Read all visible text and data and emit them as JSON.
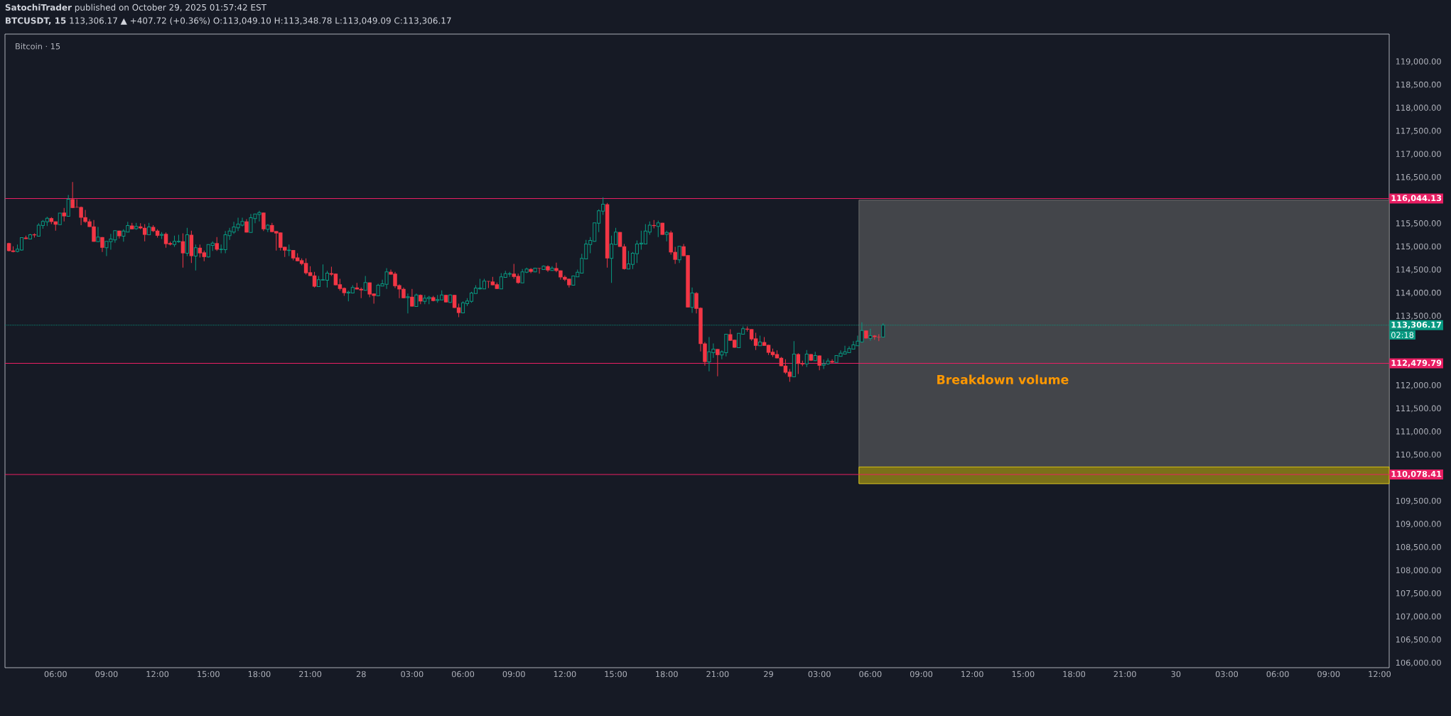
{
  "chart_data": {
    "type": "candlestick",
    "title": "**SatochiTrader** published on October 29, 2025 01:57:42 EST",
    "subtitle": "**BTCUSDT, 15** 113,306.17 ▲ +407.72 (+0.36%) O:113,049.10 H:113,348.78 L:113,049.09 C:113,306.17",
    "annotations": [
      "Bitcoin · 15",
      "02:18",
      "Breakdown volume"
    ],
    "x": [
      "2025-10-27T03:15",
      "2025-10-27T03:30",
      "2025-10-27T03:45",
      "2025-10-27T04:00",
      "2025-10-27T04:15",
      "2025-10-27T04:30",
      "2025-10-27T04:45",
      "2025-10-27T05:00",
      "2025-10-27T05:15",
      "2025-10-27T05:30",
      "2025-10-27T05:45",
      "2025-10-27T06:00",
      "2025-10-27T06:15",
      "2025-10-27T06:30",
      "2025-10-27T06:45",
      "2025-10-27T07:00",
      "2025-10-27T07:15",
      "2025-10-27T07:30",
      "2025-10-27T07:45",
      "2025-10-27T08:00",
      "2025-10-27T08:15",
      "2025-10-27T08:30",
      "2025-10-27T08:45",
      "2025-10-27T09:00",
      "2025-10-27T09:15",
      "2025-10-27T09:30",
      "2025-10-27T09:45",
      "2025-10-27T10:00",
      "2025-10-27T10:15",
      "2025-10-27T10:30",
      "2025-10-27T10:45",
      "2025-10-27T11:00",
      "2025-10-27T11:15",
      "2025-10-27T11:30",
      "2025-10-27T11:45",
      "2025-10-27T12:00",
      "2025-10-27T12:15",
      "2025-10-27T12:30",
      "2025-10-27T12:45",
      "2025-10-27T13:00",
      "2025-10-27T13:15",
      "2025-10-27T13:30",
      "2025-10-27T13:45",
      "2025-10-27T14:00",
      "2025-10-27T14:15",
      "2025-10-27T14:30",
      "2025-10-27T14:45",
      "2025-10-27T15:00",
      "2025-10-27T15:15",
      "2025-10-27T15:30",
      "2025-10-27T15:45",
      "2025-10-27T16:00",
      "2025-10-27T16:15",
      "2025-10-27T16:30",
      "2025-10-27T16:45",
      "2025-10-27T17:00",
      "2025-10-27T17:15",
      "2025-10-27T17:30",
      "2025-10-27T17:45",
      "2025-10-27T18:00",
      "2025-10-27T18:15",
      "2025-10-27T18:30",
      "2025-10-27T18:45",
      "2025-10-27T19:00",
      "2025-10-27T19:15",
      "2025-10-27T19:30",
      "2025-10-27T19:45",
      "2025-10-27T20:00",
      "2025-10-27T20:15",
      "2025-10-27T20:30",
      "2025-10-27T20:45",
      "2025-10-27T21:00",
      "2025-10-27T21:15",
      "2025-10-27T21:30",
      "2025-10-27T21:45",
      "2025-10-27T22:00",
      "2025-10-27T22:15",
      "2025-10-27T22:30",
      "2025-10-27T22:45",
      "2025-10-27T23:00",
      "2025-10-27T23:15",
      "2025-10-27T23:30",
      "2025-10-27T23:45",
      "2025-10-28T00:00",
      "2025-10-28T00:15",
      "2025-10-28T00:30",
      "2025-10-28T00:45",
      "2025-10-28T01:00",
      "2025-10-28T01:15",
      "2025-10-28T01:30",
      "2025-10-28T01:45",
      "2025-10-28T02:00",
      "2025-10-28T02:15",
      "2025-10-28T02:30",
      "2025-10-28T02:45",
      "2025-10-28T03:00",
      "2025-10-28T03:15",
      "2025-10-28T03:30",
      "2025-10-28T03:45",
      "2025-10-28T04:00",
      "2025-10-28T04:15",
      "2025-10-28T04:30",
      "2025-10-28T04:45",
      "2025-10-28T05:00",
      "2025-10-28T05:15",
      "2025-10-28T05:30",
      "2025-10-28T05:45",
      "2025-10-28T06:00",
      "2025-10-28T06:15",
      "2025-10-28T06:30",
      "2025-10-28T06:45",
      "2025-10-28T07:00",
      "2025-10-28T07:15",
      "2025-10-28T07:30",
      "2025-10-28T07:45",
      "2025-10-28T08:00",
      "2025-10-28T08:15",
      "2025-10-28T08:30",
      "2025-10-28T08:45",
      "2025-10-28T09:00",
      "2025-10-28T09:15",
      "2025-10-28T09:30",
      "2025-10-28T09:45",
      "2025-10-28T10:00",
      "2025-10-28T10:15",
      "2025-10-28T10:30",
      "2025-10-28T10:45",
      "2025-10-28T11:00",
      "2025-10-28T11:15",
      "2025-10-28T11:30",
      "2025-10-28T11:45",
      "2025-10-28T12:00",
      "2025-10-28T12:15",
      "2025-10-28T12:30",
      "2025-10-28T12:45",
      "2025-10-28T13:00",
      "2025-10-28T13:15",
      "2025-10-28T13:30",
      "2025-10-28T13:45",
      "2025-10-28T14:00",
      "2025-10-28T14:15",
      "2025-10-28T14:30",
      "2025-10-28T14:45",
      "2025-10-28T15:00",
      "2025-10-28T15:15",
      "2025-10-28T15:30",
      "2025-10-28T15:45",
      "2025-10-28T16:00",
      "2025-10-28T16:15",
      "2025-10-28T16:30",
      "2025-10-28T16:45",
      "2025-10-28T17:00",
      "2025-10-28T17:15",
      "2025-10-28T17:30",
      "2025-10-28T17:45",
      "2025-10-28T18:00",
      "2025-10-28T18:15",
      "2025-10-28T18:30",
      "2025-10-28T18:45",
      "2025-10-28T19:00",
      "2025-10-28T19:15",
      "2025-10-28T19:30",
      "2025-10-28T19:45",
      "2025-10-28T20:00",
      "2025-10-28T20:15",
      "2025-10-28T20:30",
      "2025-10-28T20:45",
      "2025-10-28T21:00",
      "2025-10-28T21:15",
      "2025-10-28T21:30",
      "2025-10-28T21:45",
      "2025-10-28T22:00",
      "2025-10-28T22:15",
      "2025-10-28T22:30",
      "2025-10-28T22:45",
      "2025-10-28T23:00",
      "2025-10-28T23:15",
      "2025-10-28T23:30",
      "2025-10-28T23:45",
      "2025-10-29T00:00",
      "2025-10-29T00:15",
      "2025-10-29T00:30",
      "2025-10-29T00:45",
      "2025-10-29T01:00",
      "2025-10-29T01:15",
      "2025-10-29T01:30",
      "2025-10-29T01:45",
      "2025-10-29T02:00",
      "2025-10-29T02:15",
      "2025-10-29T02:30",
      "2025-10-29T02:45",
      "2025-10-29T03:00",
      "2025-10-29T03:15",
      "2025-10-29T03:30",
      "2025-10-29T03:45",
      "2025-10-29T04:00",
      "2025-10-29T04:15",
      "2025-10-29T04:30",
      "2025-10-29T04:45",
      "2025-10-29T05:00",
      "2025-10-29T05:15",
      "2025-10-29T05:30",
      "2025-10-29T05:45",
      "2025-10-29T06:00",
      "2025-10-29T06:15",
      "2025-10-29T06:30",
      "2025-10-29T06:45"
    ],
    "ohlc": [
      [
        115080,
        115090,
        114900,
        114910
      ],
      [
        114920,
        115010,
        114880,
        114890
      ],
      [
        114900,
        115050,
        114880,
        114950
      ],
      [
        114930,
        115200,
        114920,
        115200
      ],
      [
        115200,
        115240,
        115170,
        115170
      ],
      [
        115170,
        115280,
        115170,
        115260
      ],
      [
        115270,
        115290,
        115200,
        115250
      ],
      [
        115230,
        115510,
        115230,
        115470
      ],
      [
        115460,
        115580,
        115390,
        115550
      ],
      [
        115540,
        115650,
        115450,
        115620
      ],
      [
        115620,
        115640,
        115490,
        115540
      ],
      [
        115550,
        115550,
        115350,
        115480
      ],
      [
        115480,
        115730,
        115480,
        115730
      ],
      [
        115740,
        115840,
        115550,
        115660
      ],
      [
        115660,
        116120,
        115660,
        116030
      ],
      [
        116030,
        116400,
        115840,
        115840
      ],
      [
        115860,
        116030,
        115850,
        115850
      ],
      [
        115860,
        115870,
        115470,
        115630
      ],
      [
        115640,
        115800,
        115520,
        115540
      ],
      [
        115550,
        115600,
        115430,
        115430
      ],
      [
        115440,
        115580,
        115110,
        115110
      ],
      [
        115110,
        115430,
        115110,
        115210
      ],
      [
        115210,
        115210,
        114890,
        114980
      ],
      [
        114980,
        115120,
        114800,
        115120
      ],
      [
        115110,
        115280,
        114940,
        115170
      ],
      [
        115150,
        115350,
        115090,
        115350
      ],
      [
        115350,
        115350,
        115180,
        115230
      ],
      [
        115230,
        115380,
        115110,
        115340
      ],
      [
        115320,
        115540,
        115320,
        115460
      ],
      [
        115460,
        115520,
        115380,
        115380
      ],
      [
        115390,
        115520,
        115370,
        115440
      ],
      [
        115440,
        115510,
        115380,
        115400
      ],
      [
        115410,
        115490,
        115120,
        115260
      ],
      [
        115260,
        115520,
        115260,
        115430
      ],
      [
        115430,
        115470,
        115320,
        115340
      ],
      [
        115350,
        115380,
        115200,
        115240
      ],
      [
        115250,
        115320,
        115170,
        115270
      ],
      [
        115280,
        115310,
        114980,
        115060
      ],
      [
        115080,
        115110,
        115030,
        115050
      ],
      [
        115050,
        115240,
        115000,
        115120
      ],
      [
        115110,
        115260,
        115090,
        115120
      ],
      [
        115120,
        115290,
        114550,
        114860
      ],
      [
        114860,
        115410,
        114800,
        115260
      ],
      [
        115260,
        115350,
        114650,
        114800
      ],
      [
        114800,
        115050,
        114490,
        114980
      ],
      [
        114980,
        115050,
        114770,
        114860
      ],
      [
        114880,
        114920,
        114690,
        114780
      ],
      [
        114780,
        115050,
        114770,
        115050
      ],
      [
        115030,
        115120,
        114910,
        115080
      ],
      [
        115080,
        115210,
        114910,
        114940
      ],
      [
        114940,
        115050,
        114860,
        114950
      ],
      [
        114940,
        115340,
        114860,
        115260
      ],
      [
        115240,
        115410,
        115150,
        115340
      ],
      [
        115320,
        115540,
        115280,
        115430
      ],
      [
        115410,
        115630,
        115340,
        115490
      ],
      [
        115470,
        115630,
        115440,
        115550
      ],
      [
        115550,
        115600,
        115310,
        115310
      ],
      [
        115310,
        115710,
        115310,
        115630
      ],
      [
        115610,
        115710,
        115510,
        115710
      ],
      [
        115700,
        115780,
        115550,
        115740
      ],
      [
        115740,
        115740,
        115340,
        115380
      ],
      [
        115380,
        115490,
        115320,
        115470
      ],
      [
        115470,
        115520,
        115320,
        115320
      ],
      [
        115340,
        115340,
        114920,
        115290
      ],
      [
        115310,
        115310,
        114920,
        114980
      ],
      [
        115000,
        115000,
        114780,
        114920
      ],
      [
        114920,
        115050,
        114800,
        114930
      ],
      [
        114930,
        114930,
        114710,
        114750
      ],
      [
        114770,
        114860,
        114690,
        114690
      ],
      [
        114710,
        114750,
        114600,
        114630
      ],
      [
        114650,
        114750,
        114400,
        114430
      ],
      [
        114450,
        114580,
        114370,
        114370
      ],
      [
        114380,
        114460,
        114120,
        114140
      ],
      [
        114140,
        114370,
        114140,
        114290
      ],
      [
        114280,
        114620,
        114280,
        114290
      ],
      [
        114280,
        114480,
        114120,
        114430
      ],
      [
        114430,
        114570,
        114370,
        114400
      ],
      [
        114420,
        114420,
        114170,
        114170
      ],
      [
        114190,
        114310,
        114050,
        114090
      ],
      [
        114110,
        114120,
        113940,
        114000
      ],
      [
        114000,
        114050,
        113820,
        114020
      ],
      [
        114000,
        114170,
        114000,
        114120
      ],
      [
        114120,
        114220,
        114080,
        114080
      ],
      [
        114090,
        114120,
        113890,
        114060
      ],
      [
        114060,
        114370,
        114060,
        114230
      ],
      [
        114230,
        114230,
        113910,
        113970
      ],
      [
        113990,
        113990,
        113770,
        113940
      ],
      [
        113940,
        114200,
        113940,
        114170
      ],
      [
        114150,
        114290,
        114150,
        114200
      ],
      [
        114190,
        114540,
        114090,
        114460
      ],
      [
        114460,
        114510,
        114400,
        114400
      ],
      [
        114420,
        114460,
        114110,
        114150
      ],
      [
        114170,
        114190,
        113890,
        114080
      ],
      [
        114090,
        114120,
        113890,
        113890
      ],
      [
        113900,
        113990,
        113560,
        113920
      ],
      [
        113920,
        114090,
        113710,
        113710
      ],
      [
        113710,
        113990,
        113710,
        113960
      ],
      [
        113960,
        113970,
        113760,
        113820
      ],
      [
        113820,
        113960,
        113760,
        113890
      ],
      [
        113880,
        113940,
        113760,
        113910
      ],
      [
        113910,
        113940,
        113820,
        113830
      ],
      [
        113840,
        113960,
        113790,
        113860
      ],
      [
        113850,
        114060,
        113850,
        113960
      ],
      [
        113960,
        113960,
        113800,
        113800
      ],
      [
        113800,
        113970,
        113790,
        113960
      ],
      [
        113960,
        113960,
        113680,
        113680
      ],
      [
        113690,
        113770,
        113480,
        113570
      ],
      [
        113570,
        113820,
        113570,
        113790
      ],
      [
        113770,
        113890,
        113720,
        113830
      ],
      [
        113820,
        114030,
        113790,
        114000
      ],
      [
        113990,
        114170,
        113990,
        114110
      ],
      [
        114090,
        114310,
        114080,
        114110
      ],
      [
        114090,
        114310,
        114090,
        114260
      ],
      [
        114260,
        114260,
        114110,
        114250
      ],
      [
        114250,
        114350,
        114170,
        114170
      ],
      [
        114190,
        114230,
        114090,
        114090
      ],
      [
        114090,
        114430,
        114090,
        114350
      ],
      [
        114340,
        114480,
        114340,
        114420
      ],
      [
        114410,
        114460,
        114350,
        114420
      ],
      [
        114420,
        114630,
        114310,
        114350
      ],
      [
        114370,
        114420,
        114200,
        114220
      ],
      [
        114220,
        114520,
        114220,
        114460
      ],
      [
        114450,
        114550,
        114430,
        114520
      ],
      [
        114520,
        114540,
        114430,
        114460
      ],
      [
        114460,
        114540,
        114450,
        114540
      ],
      [
        114540,
        114540,
        114420,
        114530
      ],
      [
        114510,
        114600,
        114510,
        114580
      ],
      [
        114580,
        114600,
        114460,
        114490
      ],
      [
        114490,
        114580,
        114480,
        114540
      ],
      [
        114540,
        114660,
        114450,
        114480
      ],
      [
        114490,
        114490,
        114290,
        114340
      ],
      [
        114350,
        114380,
        114260,
        114290
      ],
      [
        114310,
        114310,
        114120,
        114170
      ],
      [
        114170,
        114370,
        114170,
        114370
      ],
      [
        114350,
        114510,
        114350,
        114450
      ],
      [
        114430,
        114850,
        114430,
        114750
      ],
      [
        114740,
        115150,
        114740,
        115060
      ],
      [
        115050,
        115210,
        114860,
        115140
      ],
      [
        115120,
        115520,
        115110,
        115520
      ],
      [
        115510,
        115810,
        115320,
        115780
      ],
      [
        115770,
        116070,
        115690,
        115920
      ],
      [
        115920,
        115950,
        114550,
        114750
      ],
      [
        114750,
        115240,
        114220,
        115060
      ],
      [
        115050,
        115410,
        115050,
        115320
      ],
      [
        115320,
        115320,
        115000,
        115000
      ],
      [
        115010,
        115060,
        114510,
        114520
      ],
      [
        114520,
        114910,
        114520,
        114630
      ],
      [
        114620,
        114890,
        114520,
        114860
      ],
      [
        114850,
        115140,
        114650,
        115060
      ],
      [
        115060,
        115350,
        114940,
        115080
      ],
      [
        115060,
        115490,
        115060,
        115340
      ],
      [
        115320,
        115550,
        115260,
        115470
      ],
      [
        115470,
        115580,
        115400,
        115450
      ],
      [
        115440,
        115570,
        115210,
        115520
      ],
      [
        115520,
        115520,
        115260,
        115260
      ],
      [
        115270,
        115350,
        115120,
        115310
      ],
      [
        115310,
        115350,
        114830,
        114880
      ],
      [
        114890,
        115000,
        114630,
        114720
      ],
      [
        114720,
        115010,
        114650,
        115010
      ],
      [
        115010,
        115060,
        114800,
        114800
      ],
      [
        114820,
        114820,
        113690,
        113690
      ],
      [
        113690,
        114120,
        113570,
        114000
      ],
      [
        114000,
        114020,
        113560,
        113660
      ],
      [
        113680,
        113690,
        112740,
        112900
      ],
      [
        112910,
        112940,
        112430,
        112510
      ],
      [
        112510,
        113050,
        112310,
        112730
      ],
      [
        112710,
        112910,
        112600,
        112790
      ],
      [
        112790,
        112790,
        112200,
        112660
      ],
      [
        112660,
        112760,
        112570,
        112730
      ],
      [
        112710,
        113110,
        112630,
        113110
      ],
      [
        113110,
        113220,
        112970,
        112970
      ],
      [
        112990,
        112990,
        112820,
        112820
      ],
      [
        112820,
        113130,
        112820,
        113130
      ],
      [
        113110,
        113280,
        113110,
        113230
      ],
      [
        113230,
        113280,
        113170,
        113210
      ],
      [
        113220,
        113220,
        112970,
        113000
      ],
      [
        113020,
        113140,
        112770,
        112860
      ],
      [
        112860,
        113080,
        112860,
        112940
      ],
      [
        112940,
        113050,
        112860,
        112860
      ],
      [
        112880,
        112880,
        112660,
        112710
      ],
      [
        112730,
        112800,
        112620,
        112660
      ],
      [
        112680,
        112760,
        112590,
        112590
      ],
      [
        112600,
        112620,
        112420,
        112420
      ],
      [
        112430,
        112570,
        112250,
        112280
      ],
      [
        112300,
        112360,
        112080,
        112190
      ],
      [
        112190,
        112960,
        112190,
        112680
      ],
      [
        112680,
        112700,
        112250,
        112470
      ],
      [
        112480,
        112540,
        112420,
        112460
      ],
      [
        112470,
        112770,
        112400,
        112680
      ],
      [
        112680,
        112680,
        112530,
        112540
      ],
      [
        112540,
        112730,
        112530,
        112650
      ],
      [
        112650,
        112650,
        112330,
        112430
      ],
      [
        112440,
        112560,
        112360,
        112470
      ],
      [
        112470,
        112590,
        112450,
        112530
      ],
      [
        112530,
        112570,
        112480,
        112500
      ],
      [
        112500,
        112650,
        112500,
        112650
      ],
      [
        112630,
        112760,
        112630,
        112700
      ],
      [
        112680,
        112860,
        112680,
        112730
      ],
      [
        112710,
        112850,
        112710,
        112800
      ],
      [
        112790,
        112960,
        112790,
        112880
      ],
      [
        112860,
        113080,
        112860,
        112960
      ],
      [
        112940,
        113370,
        112930,
        113190
      ],
      [
        113190,
        113190,
        113020,
        113020
      ],
      [
        113020,
        113230,
        112970,
        113080
      ],
      [
        113080,
        113090,
        112990,
        113050
      ],
      [
        113050,
        113110,
        112960,
        113040
      ],
      [
        113049.1,
        113348.78,
        113049.09,
        113306.17
      ]
    ],
    "colors": [
      "#f23645",
      "#f23645",
      "#089981",
      "#089981",
      "#f23645",
      "#089981",
      "#f23645",
      "#089981",
      "#089981",
      "#089981",
      "#f23645",
      "#f23645",
      "#089981",
      "#f23645",
      "#089981",
      "#f23645",
      "#f23645",
      "#f23645",
      "#f23645",
      "#f23645",
      "#f23645",
      "#089981",
      "#f23645",
      "#089981",
      "#089981",
      "#089981",
      "#f23645",
      "#089981",
      "#089981",
      "#f23645",
      "#089981",
      "#f23645",
      "#f23645",
      "#089981",
      "#f23645",
      "#f23645",
      "#089981",
      "#f23645",
      "#f23645",
      "#089981",
      "#089981",
      "#f23645",
      "#089981",
      "#f23645",
      "#089981",
      "#f23645",
      "#f23645",
      "#089981",
      "#089981",
      "#f23645",
      "#089981",
      "#089981",
      "#089981",
      "#089981",
      "#089981",
      "#089981",
      "#f23645",
      "#089981",
      "#089981",
      "#089981",
      "#f23645",
      "#089981",
      "#f23645",
      "#f23645",
      "#f23645",
      "#f23645",
      "#089981",
      "#f23645",
      "#f23645",
      "#f23645",
      "#f23645",
      "#f23645",
      "#f23645",
      "#089981",
      "#089981",
      "#089981",
      "#f23645",
      "#f23645",
      "#f23645",
      "#f23645",
      "#089981",
      "#089981",
      "#f23645",
      "#f23645",
      "#089981",
      "#f23645",
      "#f23645",
      "#089981",
      "#089981",
      "#089981",
      "#f23645",
      "#f23645",
      "#f23645",
      "#f23645",
      "#089981",
      "#f23645",
      "#089981",
      "#f23645",
      "#089981",
      "#089981",
      "#f23645",
      "#089981",
      "#089981",
      "#f23645",
      "#089981",
      "#f23645",
      "#f23645",
      "#089981",
      "#089981",
      "#089981",
      "#089981",
      "#089981",
      "#089981",
      "#f23645",
      "#f23645",
      "#f23645",
      "#089981",
      "#089981",
      "#089981",
      "#f23645",
      "#f23645",
      "#089981",
      "#089981",
      "#f23645",
      "#089981",
      "#f23645",
      "#089981",
      "#f23645",
      "#089981",
      "#f23645",
      "#f23645",
      "#f23645",
      "#f23645",
      "#089981",
      "#089981",
      "#089981",
      "#089981",
      "#089981",
      "#089981",
      "#089981",
      "#089981",
      "#f23645",
      "#089981",
      "#089981",
      "#f23645",
      "#f23645",
      "#089981",
      "#089981",
      "#089981",
      "#089981",
      "#089981",
      "#089981",
      "#f23645",
      "#089981",
      "#f23645",
      "#089981",
      "#f23645",
      "#f23645",
      "#089981",
      "#f23645",
      "#f23645",
      "#089981",
      "#f23645",
      "#f23645",
      "#f23645",
      "#089981",
      "#089981",
      "#f23645",
      "#089981",
      "#089981",
      "#f23645",
      "#f23645",
      "#089981",
      "#089981",
      "#f23645",
      "#f23645",
      "#f23645",
      "#089981",
      "#f23645",
      "#f23645",
      "#f23645",
      "#f23645",
      "#f23645",
      "#f23645",
      "#f23645",
      "#089981",
      "#f23645",
      "#f23645",
      "#089981",
      "#f23645",
      "#089981",
      "#f23645",
      "#089981",
      "#089981",
      "#f23645",
      "#089981",
      "#089981",
      "#089981",
      "#089981",
      "#089981",
      "#089981",
      "#089981",
      "#f23645",
      "#089981",
      "#f23645",
      "#f23645",
      "#089981"
    ],
    "xlim": [
      "2025-10-27T03:01",
      "2025-10-30T12:34"
    ],
    "xticks": [
      {
        "value": "2025-10-27T06:00",
        "label": "06:00"
      },
      {
        "value": "2025-10-27T09:00",
        "label": "09:00"
      },
      {
        "value": "2025-10-27T12:00",
        "label": "12:00"
      },
      {
        "value": "2025-10-27T15:00",
        "label": "15:00"
      },
      {
        "value": "2025-10-27T18:00",
        "label": "18:00"
      },
      {
        "value": "2025-10-27T21:00",
        "label": "21:00"
      },
      {
        "value": "2025-10-28",
        "label": "28"
      },
      {
        "value": "2025-10-28T03:00",
        "label": "03:00"
      },
      {
        "value": "2025-10-28T06:00",
        "label": "06:00"
      },
      {
        "value": "2025-10-28T09:00",
        "label": "09:00"
      },
      {
        "value": "2025-10-28T12:00",
        "label": "12:00"
      },
      {
        "value": "2025-10-28T15:00",
        "label": "15:00"
      },
      {
        "value": "2025-10-28T18:00",
        "label": "18:00"
      },
      {
        "value": "2025-10-28T21:00",
        "label": "21:00"
      },
      {
        "value": "2025-10-29",
        "label": "29"
      },
      {
        "value": "2025-10-29T03:00",
        "label": "03:00"
      },
      {
        "value": "2025-10-29T06:00",
        "label": "06:00"
      },
      {
        "value": "2025-10-29T09:00",
        "label": "09:00"
      },
      {
        "value": "2025-10-29T12:00",
        "label": "12:00"
      },
      {
        "value": "2025-10-29T15:00",
        "label": "15:00"
      },
      {
        "value": "2025-10-29T18:00",
        "label": "18:00"
      },
      {
        "value": "2025-10-29T21:00",
        "label": "21:00"
      },
      {
        "value": "2025-10-30",
        "label": "30"
      },
      {
        "value": "2025-10-30T03:00",
        "label": "03:00"
      },
      {
        "value": "2025-10-30T06:00",
        "label": "06:00"
      },
      {
        "value": "2025-10-30T09:00",
        "label": "09:00"
      },
      {
        "value": "2025-10-30T12:00",
        "label": "12:00"
      }
    ],
    "ylim": [
      105900,
      119600
    ],
    "yticks": [
      {
        "value": 106000,
        "label": "106,000.00"
      },
      {
        "value": 106500,
        "label": "106,500.00"
      },
      {
        "value": 107000,
        "label": "107,000.00"
      },
      {
        "value": 107500,
        "label": "107,500.00"
      },
      {
        "value": 108000,
        "label": "108,000.00"
      },
      {
        "value": 108500,
        "label": "108,500.00"
      },
      {
        "value": 109000,
        "label": "109,000.00"
      },
      {
        "value": 109500,
        "label": "109,500.00"
      },
      {
        "value": 110500,
        "label": "110,500.00"
      },
      {
        "value": 111000,
        "label": "111,000.00"
      },
      {
        "value": 111500,
        "label": "111,500.00"
      },
      {
        "value": 112000,
        "label": "112,000.00"
      },
      {
        "value": 113500,
        "label": "113,500.00"
      },
      {
        "value": 114000,
        "label": "114,000.00"
      },
      {
        "value": 114500,
        "label": "114,500.00"
      },
      {
        "value": 115000,
        "label": "115,000.00"
      },
      {
        "value": 115500,
        "label": "115,500.00"
      },
      {
        "value": 116500,
        "label": "116,500.00"
      },
      {
        "value": 117000,
        "label": "117,000.00"
      },
      {
        "value": 117500,
        "label": "117,500.00"
      },
      {
        "value": 118000,
        "label": "118,000.00"
      },
      {
        "value": 118500,
        "label": "118,500.00"
      },
      {
        "value": 119000,
        "label": "119,000.00"
      }
    ],
    "ref_lines": [
      {
        "axis": "y",
        "value": 116044.13,
        "label": "116,044.13",
        "color": "#e91e63"
      },
      {
        "axis": "y",
        "value": 112479.79,
        "label": "112,479.79",
        "color": "#e91e63"
      },
      {
        "axis": "y",
        "value": 110078.41,
        "label": "110,078.41",
        "color": "#e91e63"
      },
      {
        "axis": "y",
        "value": 113306.17,
        "label": "113,306.17",
        "color": "#089981",
        "line_style": "dotted"
      }
    ],
    "bands": [
      {
        "axis": "y",
        "from": 109880,
        "to": 116010,
        "color": "#7a7977"
      },
      {
        "axis": "y",
        "from": 109880,
        "to": 110240,
        "color": "#f5d90a"
      }
    ]
  }
}
